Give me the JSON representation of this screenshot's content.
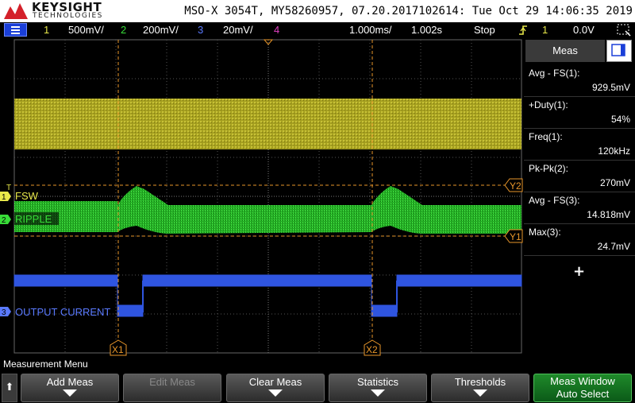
{
  "header": {
    "brand": "KEYSIGHT",
    "brand_sub": "TECHNOLOGIES",
    "info": "MSO-X 3054T, MY58260957, 07.20.2017102614: Tue Oct 29 14:06:35 2019"
  },
  "channel_bar": {
    "ch1_num": "1",
    "ch1_scale": "500mV/",
    "ch2_num": "2",
    "ch2_scale": "200mV/",
    "ch3_num": "3",
    "ch3_scale": "20mV/",
    "ch4_num": "4",
    "timebase": "1.000ms/",
    "delay": "1.002s",
    "run_state": "Stop",
    "trigger_source": "1",
    "trigger_level": "0.0V"
  },
  "waveform_labels": {
    "fsw": "FSW",
    "ripple": "RIPPLE",
    "output_current": "OUTPUT CURRENT",
    "ch1_marker": "1",
    "ch2_marker": "2",
    "ch3_marker": "3",
    "trigger_marker": "T"
  },
  "cursors": {
    "x1": "X1",
    "x2": "X2",
    "y1": "Y1",
    "y2": "Y2"
  },
  "measurements": {
    "tab_label": "Meas",
    "items": [
      {
        "label": "Avg - FS(1):",
        "value": "929.5mV"
      },
      {
        "label": "+Duty(1):",
        "value": "54%"
      },
      {
        "label": "Freq(1):",
        "value": "120kHz"
      },
      {
        "label": "Pk-Pk(2):",
        "value": "270mV"
      },
      {
        "label": "Avg - FS(3):",
        "value": "14.818mV"
      },
      {
        "label": "Max(3):",
        "value": "24.7mV"
      }
    ],
    "add_symbol": "+"
  },
  "softkeys": {
    "menu_title": "Measurement Menu",
    "up_arrow": "⬆",
    "add_meas": "Add Meas",
    "edit_meas": "Edit Meas",
    "clear_meas": "Clear Meas",
    "statistics": "Statistics",
    "thresholds": "Thresholds",
    "meas_window_line1": "Meas Window",
    "meas_window_line2": "Auto Select"
  },
  "colors": {
    "ch1": "#e8e84a",
    "ch2": "#38dc38",
    "ch3": "#5a7aff",
    "ch4": "#e040c0",
    "cursor": "#e8962a"
  }
}
